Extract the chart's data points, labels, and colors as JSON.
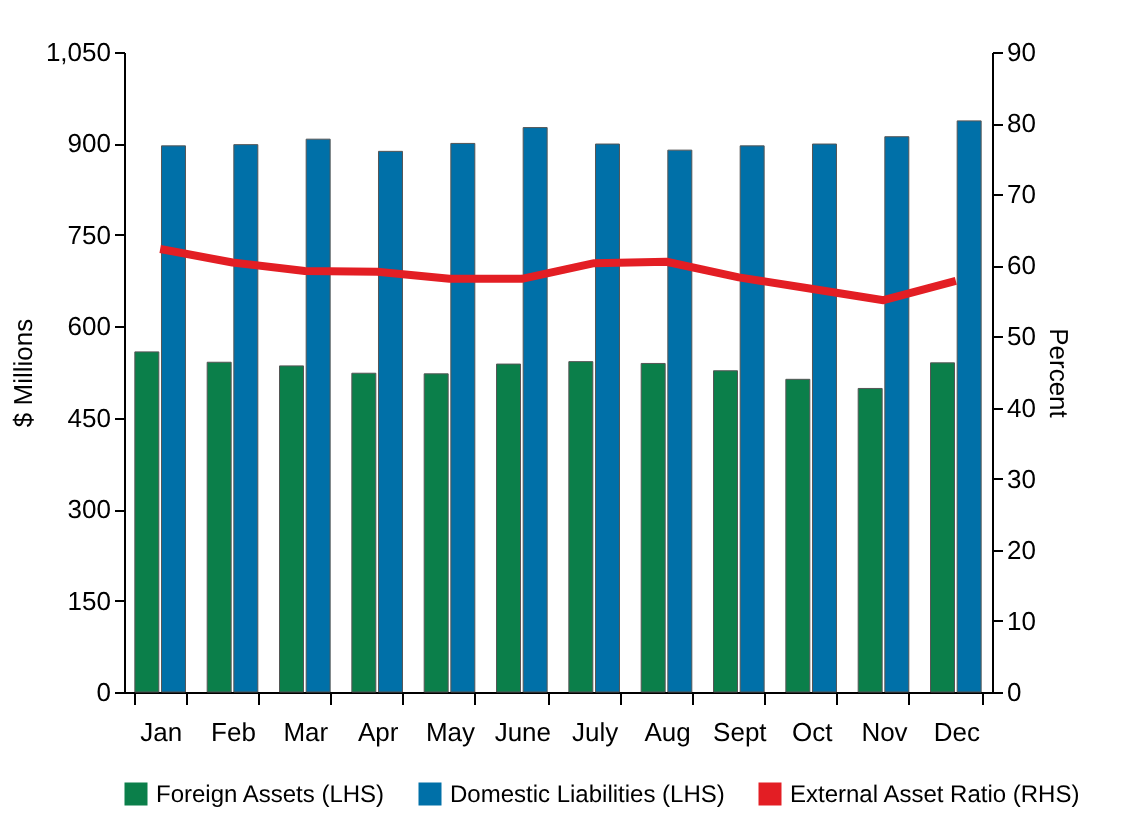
{
  "chart_data": {
    "type": "bar",
    "ylabel": "$ Millions",
    "y2label": "Percent",
    "categories": [
      "Jan",
      "Feb",
      "Mar",
      "Apr",
      "May",
      "June",
      "July",
      "Aug",
      "Sept",
      "Oct",
      "Nov",
      "Dec"
    ],
    "series": [
      {
        "name": "Foreign Assets (LHS)",
        "color": "#0b7f4a",
        "values": [
          558,
          541,
          535,
          523,
          522,
          538,
          542,
          539,
          527,
          513,
          498,
          540
        ]
      },
      {
        "name": "Domestic Liabilities (LHS)",
        "color": "#0070a8",
        "values": [
          896,
          898,
          907,
          887,
          900,
          926,
          899,
          889,
          896,
          899,
          911,
          937
        ]
      },
      {
        "name": "External Asset Ratio (RHS)",
        "type": "line",
        "axis": "y2",
        "color": "#e31e24",
        "values": [
          62.3,
          60.4,
          59.2,
          59.1,
          58.1,
          58.1,
          60.3,
          60.5,
          58.3,
          56.7,
          55.1,
          57.8
        ]
      }
    ],
    "ylim": [
      0,
      1050
    ],
    "yticks": [
      0,
      150,
      300,
      450,
      600,
      750,
      900,
      {
        "value": 1050,
        "label": "1,050"
      }
    ],
    "y2lim": [
      0,
      90
    ],
    "y2ticks": [
      0,
      10,
      20,
      30,
      40,
      50,
      60,
      70,
      80,
      90
    ],
    "grid": false,
    "legend": "bottom"
  }
}
